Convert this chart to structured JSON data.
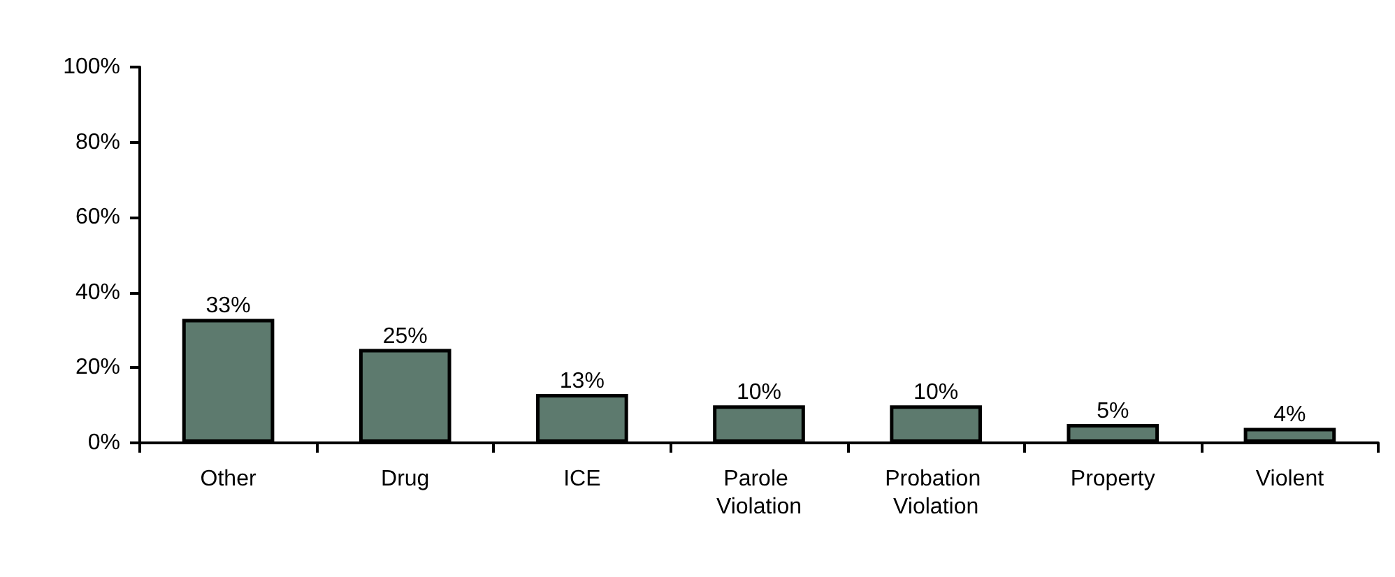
{
  "chart_data": {
    "type": "bar",
    "categories": [
      "Other",
      "Drug",
      "ICE",
      "Parole Violation",
      "Probation Violation",
      "Property",
      "Violent"
    ],
    "values": [
      33,
      25,
      13,
      10,
      10,
      5,
      4
    ],
    "value_labels": [
      "33%",
      "25%",
      "13%",
      "10%",
      "10%",
      "5%",
      "4%"
    ],
    "color": "#5d7a6e",
    "ylim": [
      0,
      100
    ],
    "yticks": [
      {
        "value": 0,
        "label": "0%"
      },
      {
        "value": 20,
        "label": "20%"
      },
      {
        "value": 40,
        "label": "40%"
      },
      {
        "value": 60,
        "label": "60%"
      },
      {
        "value": 80,
        "label": "80%"
      },
      {
        "value": 100,
        "label": "100%"
      }
    ],
    "grid": false
  }
}
